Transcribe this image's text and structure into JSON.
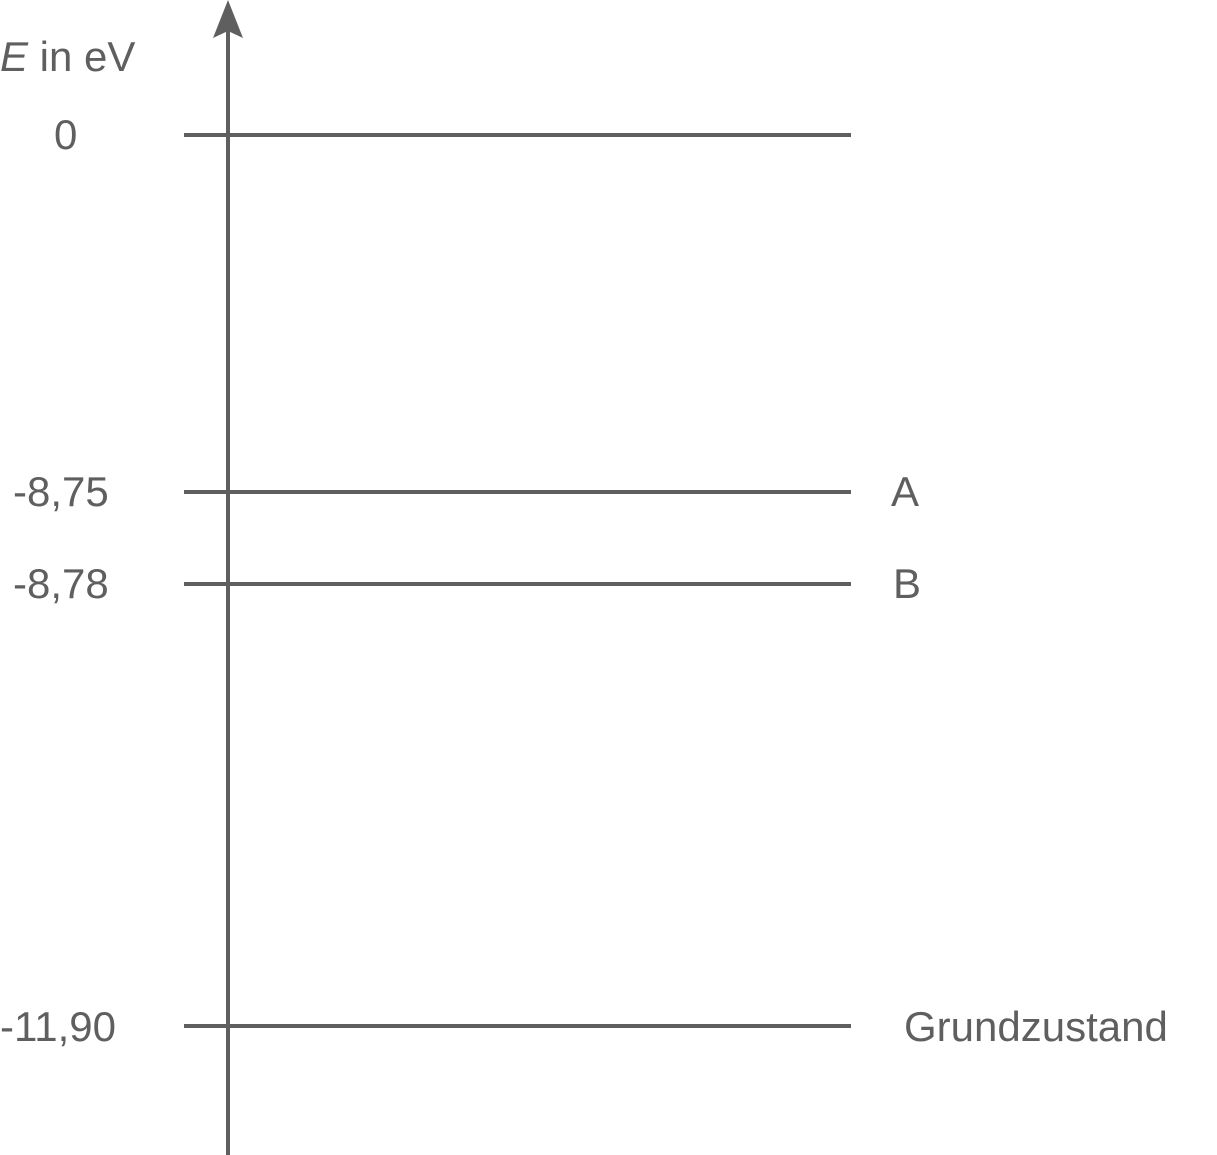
{
  "axis": {
    "variable": "E",
    "unit_text": " in eV"
  },
  "levels": [
    {
      "value_label": "0",
      "energy_eV": 0,
      "name": ""
    },
    {
      "value_label": "-8,75",
      "energy_eV": -8.75,
      "name": "A"
    },
    {
      "value_label": "-8,78",
      "energy_eV": -8.78,
      "name": "B"
    },
    {
      "value_label": "-11,90",
      "energy_eV": -11.9,
      "name": "Grundzustand"
    }
  ],
  "colors": {
    "ink": "#5f5f60",
    "background": "#ffffff"
  }
}
